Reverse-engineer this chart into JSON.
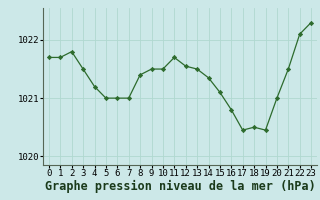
{
  "x": [
    0,
    1,
    2,
    3,
    4,
    5,
    6,
    7,
    8,
    9,
    10,
    11,
    12,
    13,
    14,
    15,
    16,
    17,
    18,
    19,
    20,
    21,
    22,
    23
  ],
  "y": [
    1021.7,
    1021.7,
    1021.8,
    1021.5,
    1021.2,
    1021.0,
    1021.0,
    1021.0,
    1021.4,
    1021.5,
    1021.5,
    1021.7,
    1021.55,
    1021.5,
    1021.35,
    1021.1,
    1020.8,
    1020.45,
    1020.5,
    1020.45,
    1021.0,
    1021.5,
    1022.1,
    1022.3
  ],
  "ylim": [
    1019.85,
    1022.55
  ],
  "yticks": [
    1020,
    1021,
    1022
  ],
  "xticks": [
    0,
    1,
    2,
    3,
    4,
    5,
    6,
    7,
    8,
    9,
    10,
    11,
    12,
    13,
    14,
    15,
    16,
    17,
    18,
    19,
    20,
    21,
    22,
    23
  ],
  "xlabel": "Graphe pression niveau de la mer (hPa)",
  "line_color": "#2d6b2d",
  "marker_color": "#2d6b2d",
  "bg_color": "#cce8e8",
  "grid_color": "#b0d8d0",
  "tick_fontsize": 6.5,
  "xlabel_fontsize": 8.5
}
